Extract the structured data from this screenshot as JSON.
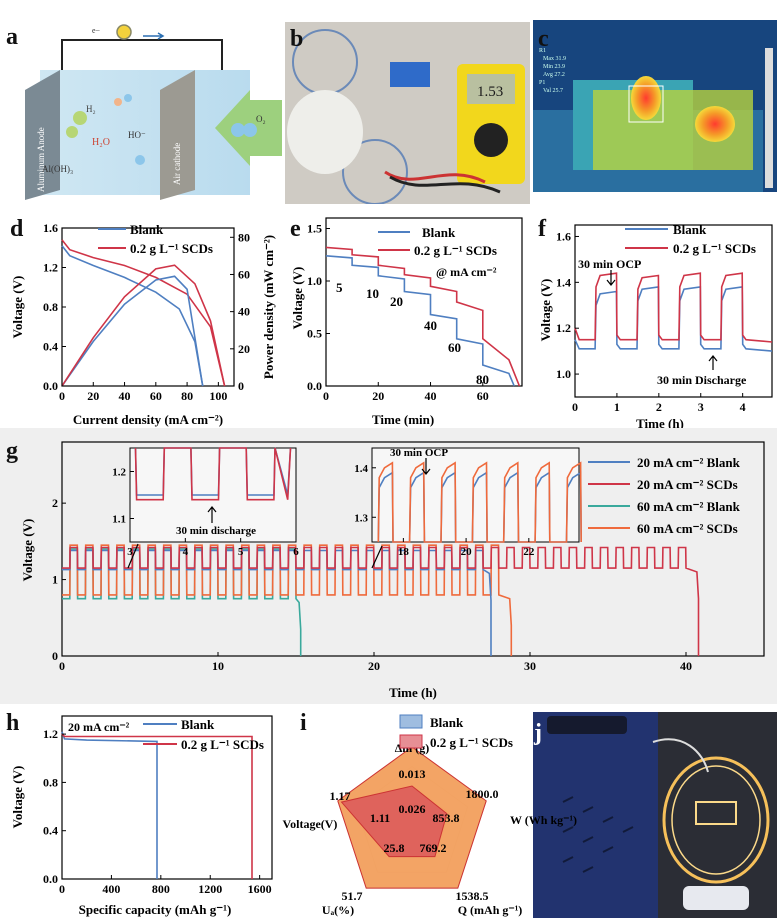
{
  "panel_labels": [
    "a",
    "b",
    "c",
    "d",
    "e",
    "f",
    "g",
    "h",
    "i",
    "j"
  ],
  "colors": {
    "blank": "#4f7fc1",
    "scds": "#cf3548",
    "blank60": "#3aa99c",
    "scds60": "#ef6a3c"
  },
  "panel_a": {
    "electron": "e−",
    "anode": "Aluminum Anode",
    "cathode": "Air cathode",
    "h2": "H₂",
    "h2o": "H₂O",
    "ho": "HO⁻",
    "aloh3": "Al(OH)₃",
    "o2": "O₂"
  },
  "panel_b": {
    "meter_reading": "1.53"
  },
  "panel_c": {
    "readouts": [
      "R1",
      "Max 31.9",
      "Min 23.9",
      "Avg 27.2",
      "P1",
      "Val 25.7"
    ]
  },
  "chart_data": [
    {
      "id": "d",
      "type": "line",
      "legend": [
        "Blank",
        "0.2 g L⁻¹ SCDs"
      ],
      "xlabel": "Current density (mA cm⁻²)",
      "ylabel": "Voltage (V)",
      "y2label": "Power density (mW cm⁻²)",
      "xlim": [
        0,
        110
      ],
      "ylim": [
        0.0,
        1.6
      ],
      "y2lim": [
        0,
        85
      ],
      "xticks": [
        "0",
        "20",
        "40",
        "60",
        "80",
        "100"
      ],
      "yticks": [
        "0.0",
        "0.4",
        "0.8",
        "1.2",
        "1.6"
      ],
      "y2ticks": [
        "0",
        "20",
        "40",
        "60",
        "80"
      ],
      "series": [
        {
          "name": "Blank",
          "axis": "left",
          "x": [
            0,
            5,
            20,
            40,
            60,
            75,
            85,
            90
          ],
          "y": [
            1.42,
            1.32,
            1.22,
            1.1,
            0.95,
            0.78,
            0.45,
            0.0
          ]
        },
        {
          "name": "0.2 g L⁻¹ SCDs",
          "axis": "left",
          "x": [
            0,
            5,
            20,
            40,
            60,
            80,
            95,
            104
          ],
          "y": [
            1.48,
            1.38,
            1.3,
            1.22,
            1.1,
            0.93,
            0.6,
            0.0
          ]
        },
        {
          "name": "Blank",
          "axis": "right",
          "x": [
            0,
            20,
            40,
            60,
            72,
            80,
            90
          ],
          "y": [
            0,
            24,
            44,
            57,
            59,
            52,
            0
          ]
        },
        {
          "name": "0.2 g L⁻¹ SCDs",
          "axis": "right",
          "x": [
            0,
            20,
            40,
            60,
            72,
            85,
            95,
            104
          ],
          "y": [
            0,
            26,
            48,
            63,
            65,
            55,
            35,
            0
          ]
        }
      ]
    },
    {
      "id": "e",
      "type": "line",
      "legend": [
        "Blank",
        "0.2 g L⁻¹ SCDs"
      ],
      "xlabel": "Time (min)",
      "ylabel": "Voltage (V)",
      "xlim": [
        0,
        75
      ],
      "ylim": [
        0.0,
        1.6
      ],
      "xticks": [
        "0",
        "20",
        "40",
        "60"
      ],
      "yticks": [
        "0.0",
        "0.5",
        "1.0",
        "1.5"
      ],
      "annotation": "@ mA cm⁻²",
      "step_labels": [
        "5",
        "10",
        "20",
        "40",
        "60",
        "80"
      ],
      "series": [
        {
          "name": "Blank",
          "x": [
            0,
            10,
            10,
            20,
            20,
            30,
            30,
            40,
            40,
            50,
            50,
            60,
            60,
            70,
            72
          ],
          "y": [
            1.24,
            1.22,
            1.15,
            1.13,
            1.05,
            1.02,
            0.9,
            0.87,
            0.68,
            0.64,
            0.45,
            0.4,
            0.2,
            0.12,
            0.0
          ]
        },
        {
          "name": "0.2 g L⁻¹ SCDs",
          "x": [
            0,
            10,
            10,
            20,
            20,
            30,
            30,
            40,
            40,
            50,
            50,
            60,
            60,
            70,
            74
          ],
          "y": [
            1.32,
            1.3,
            1.25,
            1.23,
            1.15,
            1.12,
            1.06,
            1.03,
            0.95,
            0.9,
            0.8,
            0.72,
            0.45,
            0.25,
            0.0
          ]
        }
      ]
    },
    {
      "id": "f",
      "type": "line",
      "legend": [
        "Blank",
        "0.2 g L⁻¹ SCDs"
      ],
      "xlabel": "Time (h)",
      "ylabel": "Voltage (V)",
      "xlim": [
        0,
        4.7
      ],
      "ylim": [
        0.9,
        1.65
      ],
      "xticks": [
        "0",
        "1",
        "2",
        "3",
        "4"
      ],
      "yticks": [
        "1.0",
        "1.2",
        "1.4",
        "1.6"
      ],
      "annotations": [
        "30 min OCP",
        "30 min Discharge"
      ],
      "cycle": {
        "ocp_start": [
          0.5,
          1.5,
          2.5,
          3.5
        ],
        "period": 0.5
      },
      "series": [
        {
          "name": "Blank",
          "ocp_levels": [
            1.36,
            1.38,
            1.38,
            1.38
          ],
          "discharge_level": 1.11
        },
        {
          "name": "0.2 g L⁻¹ SCDs",
          "ocp_levels": [
            1.44,
            1.43,
            1.44,
            1.44
          ],
          "discharge_level": 1.15
        }
      ]
    },
    {
      "id": "g",
      "type": "line",
      "legend": [
        "20 mA cm⁻² Blank",
        "20 mA cm⁻² SCDs",
        "60 mA cm⁻² Blank",
        "60 mA cm⁻² SCDs"
      ],
      "xlabel": "Time (h)",
      "ylabel": "Voltage (V)",
      "xlim": [
        0,
        45
      ],
      "ylim": [
        0,
        2.8
      ],
      "xticks": [
        "0",
        "10",
        "20",
        "30",
        "40"
      ],
      "yticks": [
        "0",
        "1",
        "2"
      ],
      "annotations": [
        "30 min discharge",
        "30 min OCP"
      ],
      "inset1": {
        "xticks": [
          "3",
          "4",
          "5",
          "6"
        ],
        "yticks": [
          "1.1",
          "1.2"
        ]
      },
      "inset2": {
        "xticks": [
          "18",
          "20",
          "22"
        ],
        "yticks": [
          "1.3",
          "1.4"
        ]
      },
      "series": [
        {
          "name": "20 mA cm⁻² Blank",
          "end_time": 27.5,
          "discharge": 1.13,
          "ocp": 1.38
        },
        {
          "name": "20 mA cm⁻² SCDs",
          "end_time": 40.8,
          "discharge": 1.15,
          "ocp": 1.42
        },
        {
          "name": "60 mA cm⁻² Blank",
          "end_time": 15.3,
          "discharge": 0.75,
          "ocp": 1.4
        },
        {
          "name": "60 mA cm⁻² SCDs",
          "end_time": 28.8,
          "discharge": 0.8,
          "ocp": 1.45
        }
      ]
    },
    {
      "id": "h",
      "type": "line",
      "title": "20 mA cm⁻²",
      "legend": [
        "Blank",
        "0.2 g L⁻¹ SCDs"
      ],
      "xlabel": "Specific capacity (mAh g⁻¹)",
      "ylabel": "Voltage (V)",
      "xlim": [
        0,
        1700
      ],
      "ylim": [
        0.0,
        1.35
      ],
      "xticks": [
        "0",
        "400",
        "800",
        "1200",
        "1600"
      ],
      "yticks": [
        "0.0",
        "0.4",
        "0.8",
        "1.2"
      ],
      "series": [
        {
          "name": "Blank",
          "x": [
            0,
            20,
            200,
            760,
            769,
            769
          ],
          "y": [
            1.22,
            1.16,
            1.15,
            1.14,
            1.14,
            0.0
          ]
        },
        {
          "name": "0.2 g L⁻¹ SCDs",
          "x": [
            0,
            20,
            200,
            1530,
            1538,
            1538
          ],
          "y": [
            1.2,
            1.18,
            1.18,
            1.18,
            1.18,
            0.0
          ]
        }
      ]
    },
    {
      "id": "i",
      "type": "radar",
      "legend": [
        "Blank",
        "0.2 g L⁻¹ SCDs"
      ],
      "axes": [
        "Δm (g)",
        "W (Wh kg⁻¹)",
        "Q (mAh g⁻¹)",
        "Uₐ(%)",
        "Voltage(V)"
      ],
      "axis_max": [
        "0.013",
        "1800.0",
        "1538.5",
        "51.7",
        "1.17"
      ],
      "series": [
        {
          "name": "Blank",
          "labels": [
            "0.026",
            "853.8",
            "769.2",
            "25.8",
            "1.11"
          ],
          "fraction": [
            0.5,
            0.47,
            0.5,
            0.5,
            0.95
          ]
        },
        {
          "name": "0.2 g L⁻¹ SCDs",
          "labels": [
            "0.013",
            "1800.0",
            "1538.5",
            "51.7",
            "1.17"
          ],
          "fraction": [
            1,
            1,
            1,
            1,
            1
          ]
        }
      ]
    }
  ]
}
